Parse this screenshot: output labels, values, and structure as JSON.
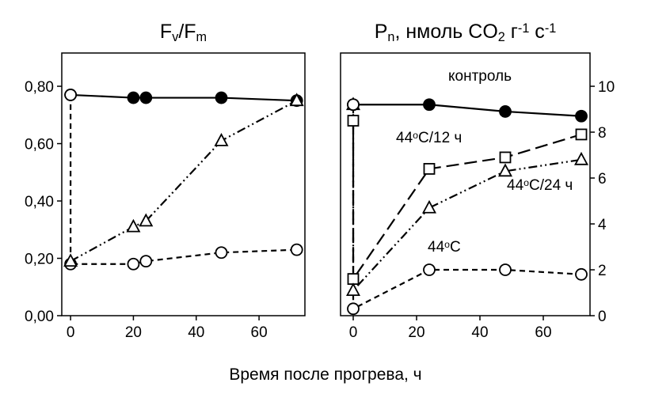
{
  "chart_data": [
    {
      "type": "line",
      "title": [
        {
          "t": "F"
        },
        {
          "t": "v",
          "sub": true
        },
        {
          "t": "/F"
        },
        {
          "t": "m",
          "sub": true
        }
      ],
      "xlim": [
        -2.8,
        74.6
      ],
      "xticks": [
        0,
        20,
        40,
        60
      ],
      "ylim": [
        0,
        0.916
      ],
      "yticks": [
        {
          "value": 0,
          "label": "0,00"
        },
        {
          "value": 0.2,
          "label": "0,20"
        },
        {
          "value": 0.4,
          "label": "0,40"
        },
        {
          "value": 0.6,
          "label": "0,60"
        },
        {
          "value": 0.8,
          "label": "0,80"
        }
      ],
      "yaxis_side": "left",
      "series": [
        {
          "marker": "circle",
          "filled": true,
          "dash": "solid",
          "x": [
            0,
            20,
            24,
            48,
            72
          ],
          "values": [
            0.77,
            0.76,
            0.76,
            0.76,
            0.75
          ]
        },
        {
          "marker": "circle",
          "filled": false,
          "dash": "dashed",
          "x": [
            0,
            0,
            20,
            24,
            48,
            72
          ],
          "values": [
            0.77,
            0.18,
            0.18,
            0.19,
            0.22,
            0.23
          ]
        },
        {
          "marker": "triangle",
          "filled": false,
          "dash": "dashdotdot",
          "x": [
            0,
            20,
            24,
            48,
            72
          ],
          "values": [
            0.19,
            0.31,
            0.33,
            0.61,
            0.75
          ]
        }
      ]
    },
    {
      "type": "line",
      "title": [
        {
          "t": "P"
        },
        {
          "t": "n",
          "sub": true
        },
        {
          "t": ", нмоль CO"
        },
        {
          "t": "2",
          "sub": true
        },
        {
          "t": " г"
        },
        {
          "t": "-1",
          "sup": true
        },
        {
          "t": " с"
        },
        {
          "t": "-1",
          "sup": true
        }
      ],
      "xlim": [
        -4,
        74.75
      ],
      "xticks": [
        0,
        20,
        40,
        60
      ],
      "ylim": [
        0,
        11.45
      ],
      "yticks": [
        0,
        2,
        4,
        6,
        8,
        10
      ],
      "yaxis_side": "right",
      "series": [
        {
          "marker": "circle",
          "filled": true,
          "dash": "solid",
          "x": [
            0,
            24,
            48,
            72
          ],
          "values": [
            9.2,
            9.2,
            8.9,
            8.7
          ]
        },
        {
          "marker": "square",
          "filled": false,
          "dash": "longdash",
          "x": [
            0,
            0,
            24,
            48,
            72
          ],
          "values": [
            8.5,
            1.6,
            6.4,
            6.9,
            7.9
          ]
        },
        {
          "marker": "triangle",
          "filled": false,
          "dash": "dashdotdot",
          "x": [
            0,
            0,
            24,
            48,
            72
          ],
          "values": [
            9.2,
            1.1,
            4.7,
            6.3,
            6.8
          ]
        },
        {
          "marker": "circle",
          "filled": false,
          "dash": "dashed",
          "x": [
            0,
            0,
            24,
            48,
            72
          ],
          "values": [
            9.2,
            0.3,
            2.0,
            2.0,
            1.8
          ]
        }
      ],
      "annotations": [
        [
          {
            "t": "контроль"
          }
        ],
        [
          {
            "t": "44"
          },
          {
            "t": "o",
            "sup": true
          },
          {
            "t": "C/12 ч"
          }
        ],
        [
          {
            "t": "44"
          },
          {
            "t": "o",
            "sup": true
          },
          {
            "t": "C/24 ч"
          }
        ],
        [
          {
            "t": "44"
          },
          {
            "t": "o",
            "sup": true
          },
          {
            "t": "C"
          }
        ]
      ]
    }
  ],
  "xlabel": "Время после прогрева, ч"
}
